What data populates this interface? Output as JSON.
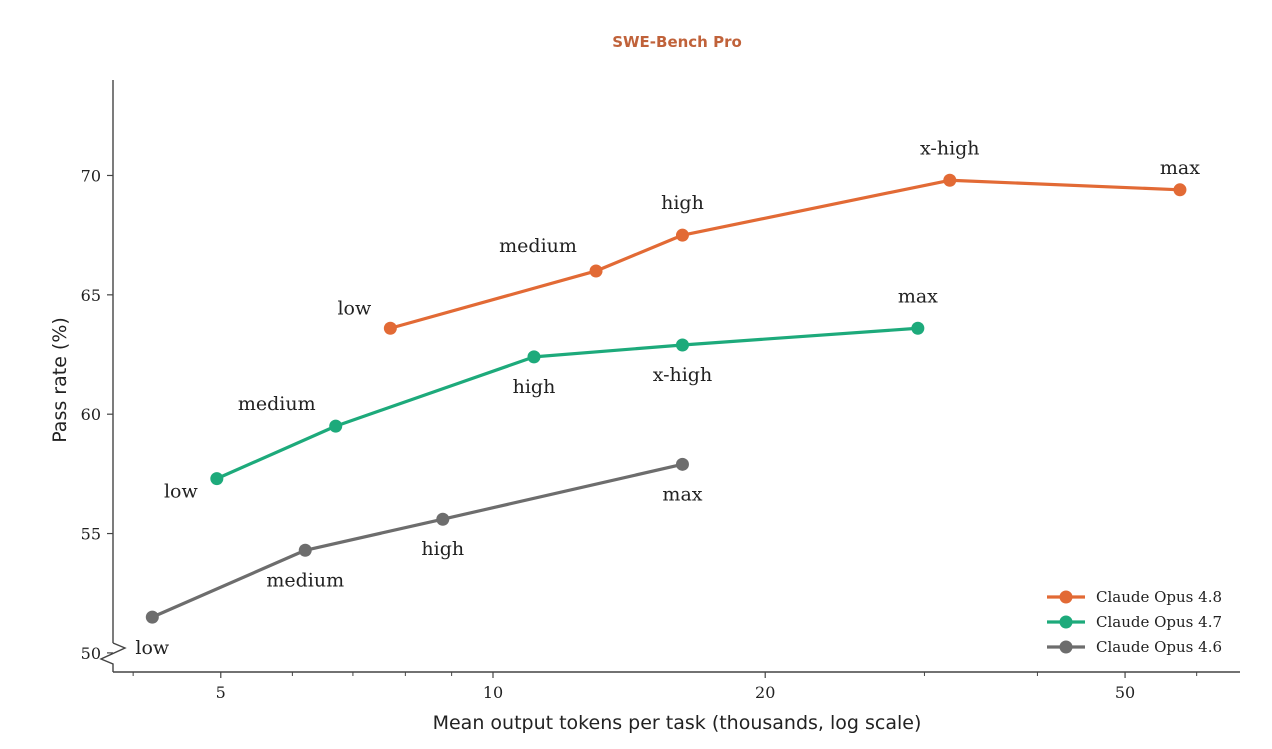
{
  "chart_data": {
    "type": "line",
    "title": "SWE-Bench Pro",
    "title_color": "#C0623A",
    "xlabel": "Mean output tokens per task (thousands, log scale)",
    "ylabel": "Pass rate (%)",
    "x_scale": "log",
    "xlim": [
      3.8,
      67
    ],
    "ylim": [
      49.2,
      74
    ],
    "x_ticks": [
      5,
      10,
      20,
      50
    ],
    "y_ticks": [
      50,
      55,
      60,
      65,
      70
    ],
    "y_axis_break": true,
    "grid": false,
    "legend_position": "bottom-right",
    "series": [
      {
        "name": "Claude Opus 4.8",
        "color": "#E26A35",
        "points": [
          {
            "x": 7.7,
            "y": 63.6,
            "label": "low"
          },
          {
            "x": 13.0,
            "y": 66.0,
            "label": "medium"
          },
          {
            "x": 16.2,
            "y": 67.5,
            "label": "high"
          },
          {
            "x": 32.0,
            "y": 69.8,
            "label": "x-high"
          },
          {
            "x": 57.5,
            "y": 69.4,
            "label": "max"
          }
        ]
      },
      {
        "name": "Claude Opus 4.7",
        "color": "#1DAA7B",
        "points": [
          {
            "x": 4.95,
            "y": 57.3,
            "label": "low"
          },
          {
            "x": 6.7,
            "y": 59.5,
            "label": "medium"
          },
          {
            "x": 11.1,
            "y": 62.4,
            "label": "high"
          },
          {
            "x": 16.2,
            "y": 62.9,
            "label": "x-high"
          },
          {
            "x": 29.5,
            "y": 63.6,
            "label": "max"
          }
        ]
      },
      {
        "name": "Claude Opus 4.6",
        "color": "#6D6D6D",
        "points": [
          {
            "x": 4.2,
            "y": 51.5,
            "label": "low"
          },
          {
            "x": 6.2,
            "y": 54.3,
            "label": "medium"
          },
          {
            "x": 8.8,
            "y": 55.6,
            "label": "high"
          },
          {
            "x": 16.2,
            "y": 57.9,
            "label": "max"
          }
        ]
      }
    ]
  }
}
